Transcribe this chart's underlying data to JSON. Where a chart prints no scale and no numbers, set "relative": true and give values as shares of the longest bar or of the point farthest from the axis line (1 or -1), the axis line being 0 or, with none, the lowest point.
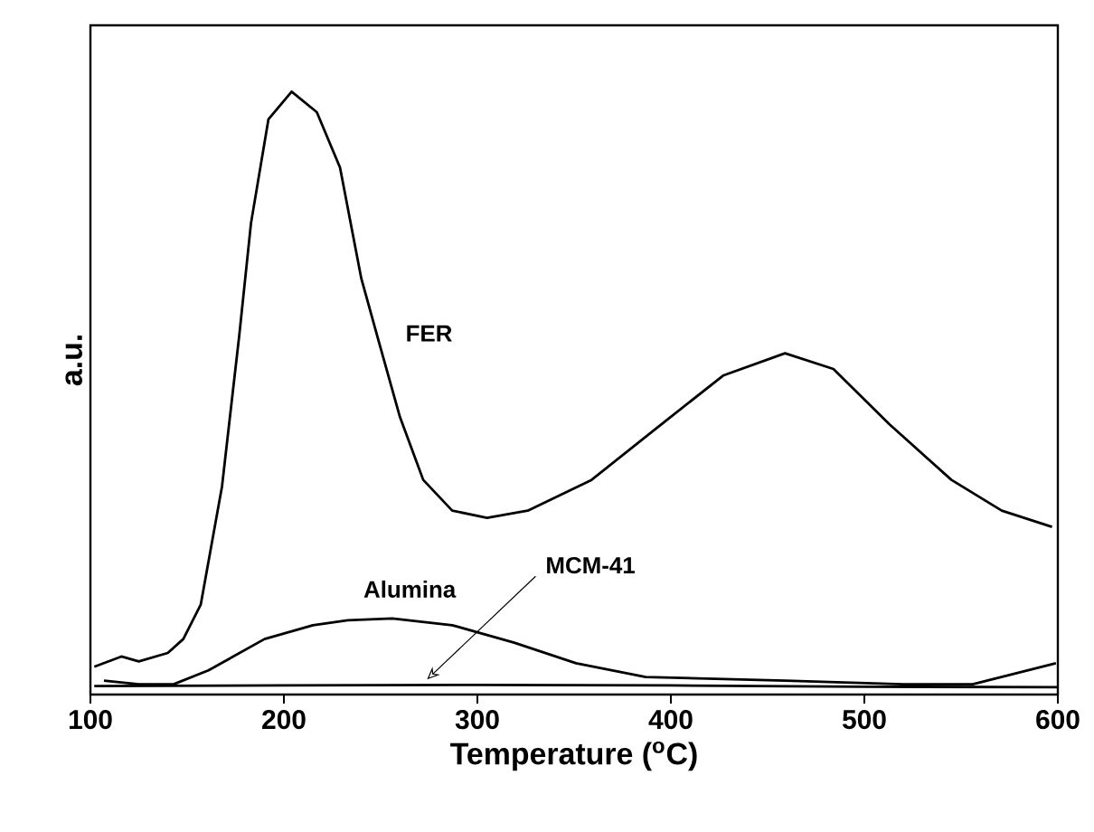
{
  "chart_data": {
    "type": "line",
    "xlabel": "Temperature ($^{o}$C)",
    "ylabel": "a.u.",
    "relative": true,
    "xlim": [
      100,
      600
    ],
    "xticks": [
      100,
      200,
      300,
      400,
      500,
      600
    ],
    "series": [
      {
        "name": "FER",
        "color": "#000000",
        "x": [
          102,
          116,
          125,
          140,
          148,
          157,
          168,
          177,
          183,
          192,
          204,
          217,
          229,
          240,
          249,
          260,
          272,
          287,
          305,
          326,
          359,
          395,
          427,
          459,
          484,
          513,
          545,
          571,
          597
        ],
        "values": [
          0.046,
          0.063,
          0.055,
          0.069,
          0.092,
          0.149,
          0.345,
          0.598,
          0.782,
          0.954,
          1.0,
          0.966,
          0.874,
          0.69,
          0.586,
          0.46,
          0.356,
          0.305,
          0.293,
          0.305,
          0.356,
          0.448,
          0.529,
          0.566,
          0.54,
          0.448,
          0.356,
          0.305,
          0.278
        ]
      },
      {
        "name": "Alumina",
        "color": "#000000",
        "x": [
          107,
          125,
          143,
          161,
          190,
          215,
          233,
          256,
          287,
          319,
          351,
          387,
          459,
          520,
          556,
          599
        ],
        "values": [
          0.023,
          0.017,
          0.017,
          0.04,
          0.092,
          0.115,
          0.123,
          0.126,
          0.115,
          0.086,
          0.052,
          0.029,
          0.023,
          0.017,
          0.017,
          0.052
        ]
      },
      {
        "color": "#000000",
        "x": [
          102,
          200,
          300,
          400,
          500,
          600
        ],
        "values": [
          0.014,
          0.015,
          0.016,
          0.015,
          0.013,
          0.012
        ]
      }
    ],
    "annotations": [
      {
        "text": "MCM-41",
        "x": 274,
        "y": 0.016
      }
    ]
  }
}
